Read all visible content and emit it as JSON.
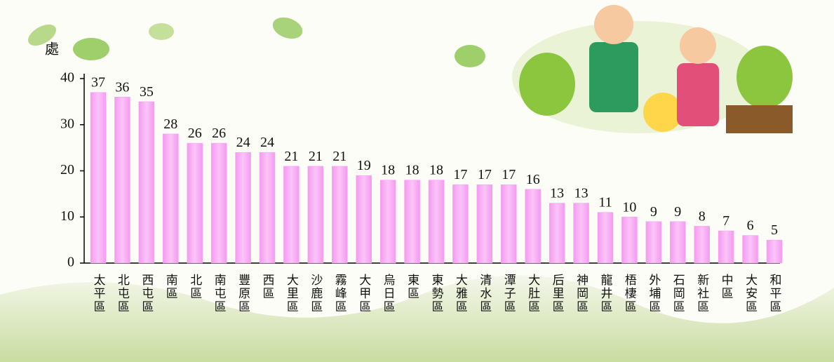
{
  "chart_data": {
    "type": "bar",
    "y_label": "處",
    "categories": [
      "太平區",
      "北屯區",
      "西屯區",
      "南區",
      "北區",
      "南屯區",
      "豐原區",
      "西區",
      "大里區",
      "沙鹿區",
      "霧峰區",
      "大甲區",
      "烏日區",
      "東區",
      "東勢區",
      "大雅區",
      "清水區",
      "潭子區",
      "大肚區",
      "后里區",
      "神岡區",
      "龍井區",
      "梧棲區",
      "外埔區",
      "石岡區",
      "新社區",
      "中區",
      "大安區",
      "和平區"
    ],
    "values": [
      37,
      36,
      35,
      28,
      26,
      26,
      24,
      24,
      21,
      21,
      21,
      19,
      18,
      18,
      18,
      17,
      17,
      17,
      16,
      13,
      13,
      11,
      10,
      9,
      9,
      8,
      7,
      6,
      5
    ],
    "color": "#f7a3f3",
    "ylim": [
      0,
      40
    ],
    "yticks": [
      0,
      10,
      20,
      30,
      40
    ]
  }
}
